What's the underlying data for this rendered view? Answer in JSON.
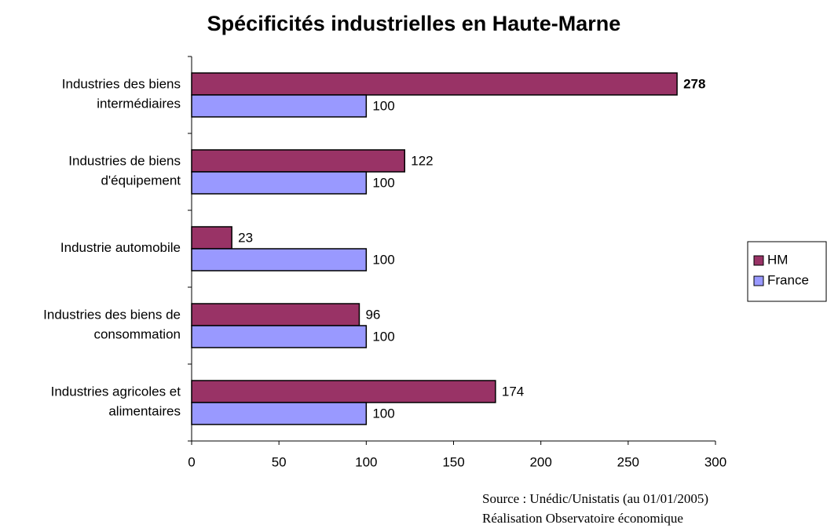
{
  "chart_data": {
    "type": "hbar",
    "title": "Spécificités industrielles en Haute-Marne",
    "categories": [
      [
        "Industries des biens",
        "intermédiaires"
      ],
      [
        "Industries de biens",
        "d'équipement"
      ],
      [
        "Industrie automobile"
      ],
      [
        "Industries des biens de",
        "consommation"
      ],
      [
        "Industries agricoles et",
        "alimentaires"
      ]
    ],
    "series": [
      {
        "name": "HM",
        "color": "#993366",
        "values": [
          278,
          122,
          23,
          96,
          174
        ]
      },
      {
        "name": "France",
        "color": "#9999ff",
        "values": [
          100,
          100,
          100,
          100,
          100
        ]
      }
    ],
    "xlim": [
      0,
      300
    ],
    "xticks": [
      0,
      50,
      100,
      150,
      200,
      250,
      300
    ],
    "legend": "right",
    "source": [
      "Source : Unédic/Unistatis (au 01/01/2005)",
      "Réalisation Observatoire économique"
    ]
  }
}
